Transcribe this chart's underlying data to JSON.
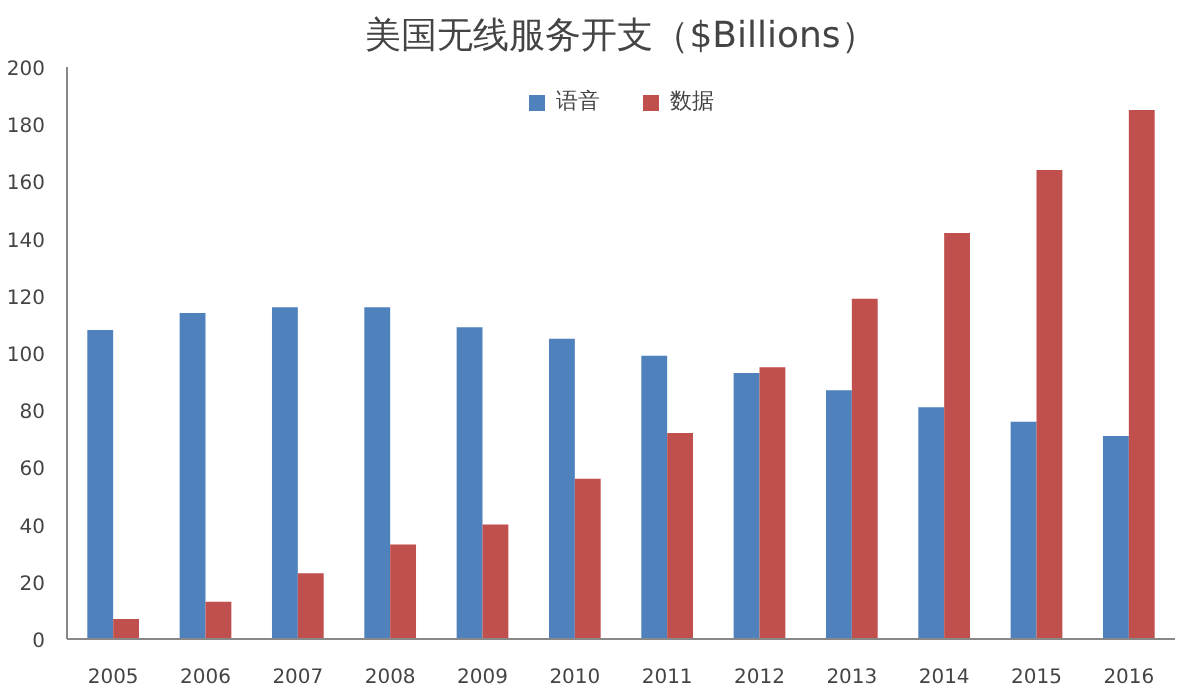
{
  "chart_data": {
    "type": "bar",
    "title": "美国无线服务开支（$Billions）",
    "categories": [
      "2005",
      "2006",
      "2007",
      "2008",
      "2009",
      "2010",
      "2011",
      "2012",
      "2013",
      "2014",
      "2015",
      "2016"
    ],
    "series": [
      {
        "name": "语音",
        "color": "#4f81bd",
        "values": [
          108,
          114,
          116,
          116,
          109,
          105,
          99,
          93,
          87,
          81,
          76,
          71
        ]
      },
      {
        "name": "数据",
        "color": "#c0504d",
        "values": [
          7,
          13,
          23,
          33,
          40,
          56,
          72,
          95,
          119,
          142,
          164,
          185
        ]
      }
    ],
    "ylim": [
      0,
      200
    ],
    "yticks": [
      0,
      20,
      40,
      60,
      80,
      100,
      120,
      140,
      160,
      180,
      200
    ],
    "grid": false,
    "legend": "top"
  }
}
